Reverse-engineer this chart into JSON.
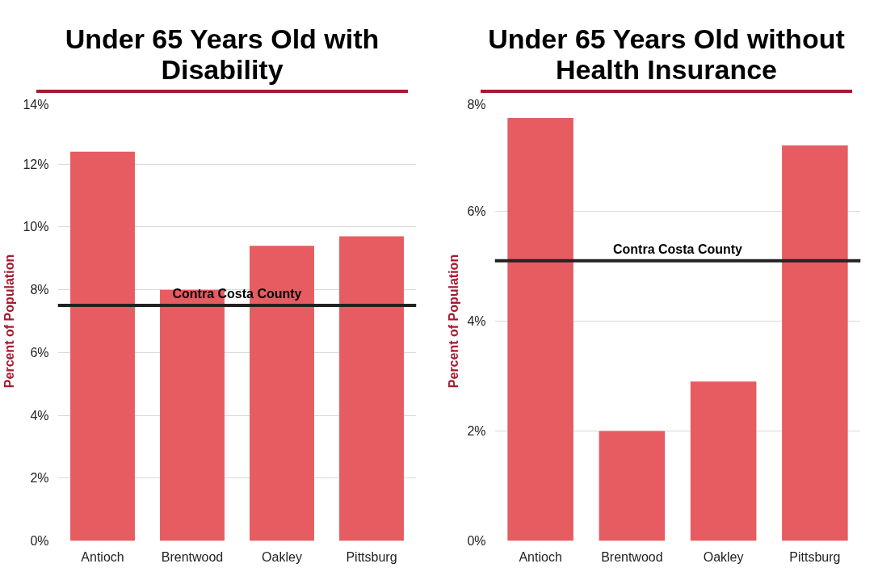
{
  "chart_data": [
    {
      "type": "bar",
      "title": "Under 65 Years Old with Disability",
      "ylabel": "Percent of Population",
      "categories": [
        "Antioch",
        "Brentwood",
        "Oakley",
        "Pittsburg"
      ],
      "values": [
        12.4,
        8.0,
        9.4,
        9.7
      ],
      "color": "#e65c60",
      "ylim": [
        0,
        14
      ],
      "yticks": [
        {
          "value": 0,
          "label": "0%"
        },
        {
          "value": 2,
          "label": "2%"
        },
        {
          "value": 4,
          "label": "4%"
        },
        {
          "value": 6,
          "label": "6%"
        },
        {
          "value": 8,
          "label": "8%"
        },
        {
          "value": 10,
          "label": "10%"
        },
        {
          "value": 12,
          "label": "12%"
        },
        {
          "value": 14,
          "label": "14%"
        }
      ],
      "ref_lines": [
        {
          "axis": "y",
          "value": 7.5,
          "label": "Contra Costa County",
          "color": "#222222"
        }
      ],
      "grid": "y"
    },
    {
      "type": "bar",
      "title": "Under 65 Years Old without Health Insurance",
      "ylabel": "Percent of Population",
      "categories": [
        "Antioch",
        "Brentwood",
        "Oakley",
        "Pittsburg"
      ],
      "values": [
        7.7,
        2.0,
        2.9,
        7.2
      ],
      "color": "#e65c60",
      "ylim": [
        0,
        8
      ],
      "yticks": [
        {
          "value": 0,
          "label": "0%"
        },
        {
          "value": 2,
          "label": "2%"
        },
        {
          "value": 4,
          "label": "4%"
        },
        {
          "value": 6,
          "label": "6%"
        },
        {
          "value": 8,
          "label": "8%"
        }
      ],
      "ref_lines": [
        {
          "axis": "y",
          "value": 5.1,
          "label": "Contra Costa County",
          "color": "#222222"
        }
      ],
      "grid": "y"
    }
  ]
}
